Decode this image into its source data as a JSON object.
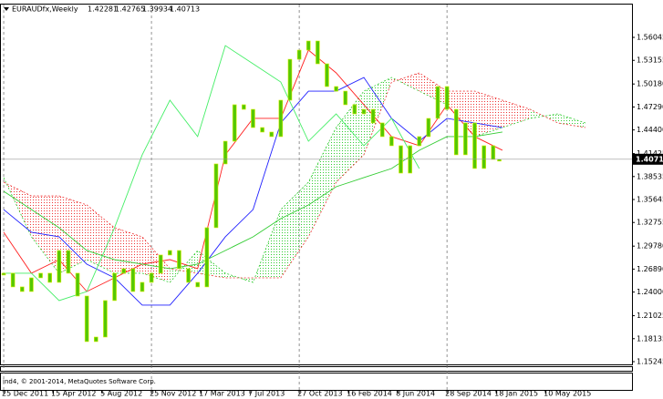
{
  "chart_data": {
    "type": "ichimoku",
    "header": {
      "symbol": "EURAUDfx,Weekly",
      "open": 1.42281,
      "high": 1.42765,
      "low": 1.39934,
      "close": 1.40713
    },
    "last_price": 1.40713,
    "footer": "ind4, © 2001-2014, MetaQuotes Software Corp.",
    "xlim": [
      -1.2,
      204.1
    ],
    "xticks": [
      {
        "value": 0,
        "label": "25 Dec 2011"
      },
      {
        "value": 16,
        "label": "15 Apr 2012"
      },
      {
        "value": 32,
        "label": "5 Aug 2012"
      },
      {
        "value": 48,
        "label": "25 Nov 2012"
      },
      {
        "value": 64,
        "label": "17 Mar 2013"
      },
      {
        "value": 80,
        "label": "7 Jul 2013"
      },
      {
        "value": 96,
        "label": "27 Oct 2013"
      },
      {
        "value": 112,
        "label": "16 Feb 2014"
      },
      {
        "value": 128,
        "label": "8 Jun 2014"
      },
      {
        "value": 144,
        "label": "28 Sep 2014"
      },
      {
        "value": 160,
        "label": "18 Jan 2015"
      },
      {
        "value": 176,
        "label": "10 May 2015"
      }
    ],
    "ylim": [
      1.149,
      1.6006
    ],
    "yticks": [
      {
        "value": 1.56045,
        "label": "1.56045"
      },
      {
        "value": 1.53155,
        "label": "1.53155"
      },
      {
        "value": 1.5018,
        "label": "1.50180"
      },
      {
        "value": 1.4729,
        "label": "1.47290"
      },
      {
        "value": 1.444,
        "label": "1.44400"
      },
      {
        "value": 1.41425,
        "label": "1.41425"
      },
      {
        "value": 1.38535,
        "label": "1.38535"
      },
      {
        "value": 1.35645,
        "label": "1.35645"
      },
      {
        "value": 1.32755,
        "label": "1.32755"
      },
      {
        "value": 1.2978,
        "label": "1.29780"
      },
      {
        "value": 1.2689,
        "label": "1.26890"
      },
      {
        "value": 1.24,
        "label": "1.24000"
      },
      {
        "value": 1.21025,
        "label": "1.21025"
      },
      {
        "value": 1.18135,
        "label": "1.18135"
      },
      {
        "value": 1.15245,
        "label": "1.15245"
      }
    ],
    "price": {
      "color": "#55c800",
      "x": [
        0,
        3,
        6,
        9,
        12,
        15,
        18,
        21,
        24,
        27,
        30,
        33,
        36,
        39,
        42,
        45,
        48,
        51,
        54,
        57,
        60,
        63,
        66,
        69,
        72,
        75,
        78,
        81,
        84,
        87,
        90,
        93,
        96,
        99,
        102,
        105,
        108,
        111,
        114,
        117,
        120,
        123,
        126,
        129,
        132,
        135,
        138,
        141,
        144,
        147,
        150,
        153,
        156,
        159,
        161
      ],
      "values": [
        1.2637,
        1.2465,
        1.2407,
        1.2579,
        1.2637,
        1.2522,
        1.2923,
        1.2637,
        1.235,
        1.1777,
        1.1834,
        1.2293,
        1.2637,
        1.2694,
        1.2407,
        1.2522,
        1.2637,
        1.2866,
        1.2923,
        1.2694,
        1.2522,
        1.2465,
        1.321,
        1.4012,
        1.4298,
        1.4757,
        1.4699,
        1.447,
        1.4413,
        1.4356,
        1.4814,
        1.5329,
        1.5444,
        1.5559,
        1.5272,
        1.4986,
        1.4928,
        1.4757,
        1.4642,
        1.4699,
        1.4528,
        1.4356,
        1.4241,
        1.3897,
        1.4241,
        1.4356,
        1.4585,
        1.4986,
        1.4699,
        1.4127,
        1.4528,
        1.3955,
        1.4241,
        1.4069,
        1.4071
      ]
    },
    "lines": [
      {
        "color": "#ff2020",
        "x": [
          0,
          9,
          18,
          27,
          36,
          45,
          54,
          63,
          72,
          81,
          90,
          99,
          108,
          117,
          126,
          135,
          144,
          153,
          162
        ],
        "values": [
          1.3152,
          1.2637,
          1.2808,
          1.2407,
          1.2579,
          1.2751,
          1.2808,
          1.2694,
          1.4127,
          1.4585,
          1.4585,
          1.5444,
          1.5158,
          1.4757,
          1.4356,
          1.4241,
          1.4757,
          1.4356,
          1.4184
        ]
      },
      {
        "color": "#2020ff",
        "x": [
          0,
          9,
          18,
          27,
          36,
          45,
          54,
          63,
          72,
          81,
          90,
          99,
          108,
          117,
          126,
          135,
          144,
          153,
          162
        ],
        "values": [
          1.3438,
          1.3152,
          1.3095,
          1.2751,
          1.2579,
          1.2236,
          1.2236,
          1.2637,
          1.3095,
          1.3438,
          1.4528,
          1.4928,
          1.4928,
          1.51,
          1.4585,
          1.4298,
          1.4585,
          1.4528,
          1.447
        ]
      },
      {
        "color": "#33cc33",
        "x": [
          0,
          9,
          18,
          27,
          36,
          45,
          54,
          63,
          72,
          81,
          90,
          99,
          108,
          117,
          126,
          135,
          144,
          153,
          162
        ],
        "values": [
          1.3668,
          1.3438,
          1.3209,
          1.2923,
          1.2808,
          1.2751,
          1.2694,
          1.2751,
          1.2923,
          1.3095,
          1.3324,
          1.3496,
          1.3725,
          1.384,
          1.3954,
          1.4184,
          1.4356,
          1.4356,
          1.4413
        ]
      },
      {
        "color": "#44ee66",
        "x": [
          0,
          9,
          18,
          27,
          36,
          45,
          54,
          63,
          72,
          81,
          90,
          99,
          108,
          117,
          126,
          135
        ],
        "values": [
          1.2637,
          1.2637,
          1.2293,
          1.2407,
          1.3209,
          1.4127,
          1.4814,
          1.4356,
          1.5501,
          1.5272,
          1.5043,
          1.4298,
          1.4642,
          1.4241,
          1.4585,
          1.3954
        ]
      }
    ],
    "cloud": {
      "x": [
        0,
        9,
        18,
        27,
        36,
        45,
        54,
        63,
        72,
        81,
        90,
        99,
        108,
        117,
        126,
        135,
        144,
        153,
        162,
        171,
        180,
        189
      ],
      "span_a": {
        "color": "#33cc33",
        "values": [
          1.384,
          1.3095,
          1.2637,
          1.2808,
          1.2637,
          1.2637,
          1.2522,
          1.2923,
          1.2637,
          1.2522,
          1.3438,
          1.3782,
          1.447,
          1.4928,
          1.51,
          1.4928,
          1.4757,
          1.4356,
          1.447,
          1.4585,
          1.4642,
          1.4528
        ]
      },
      "span_b": {
        "color": "#ee3333",
        "values": [
          1.3782,
          1.361,
          1.361,
          1.3496,
          1.3209,
          1.3095,
          1.2694,
          1.2637,
          1.2579,
          1.2579,
          1.2579,
          1.3095,
          1.3782,
          1.4127,
          1.5043,
          1.5158,
          1.4928,
          1.4928,
          1.4814,
          1.4699,
          1.4528,
          1.447
        ]
      }
    }
  }
}
